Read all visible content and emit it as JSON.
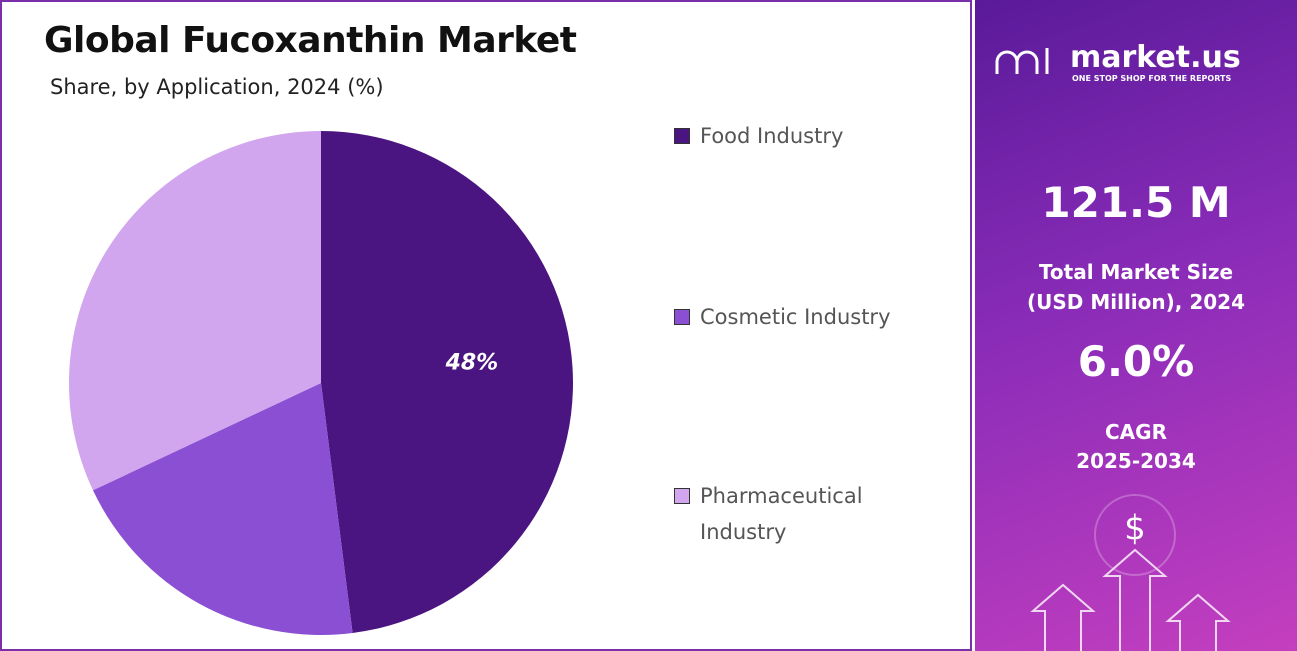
{
  "chart_data": {
    "type": "pie",
    "title": "Global Fucoxanthin Market",
    "subtitle": "Share, by Application, 2024 (%)",
    "categories": [
      "Food Industry",
      "Cosmetic Industry",
      "Pharmaceutical Industry"
    ],
    "values": [
      48,
      20,
      32
    ],
    "value_labels": [
      "48%",
      null,
      null
    ],
    "colors": [
      "#4b1581",
      "#8a4fd2",
      "#d1a6ee"
    ],
    "legend": "right"
  },
  "panel": {
    "brand": "market.us",
    "tagline": "ONE STOP SHOP FOR THE REPORTS",
    "market_size": "121.5 M",
    "market_size_label": [
      "Total Market Size",
      "(USD Million), 2024"
    ],
    "cagr": "6.0%",
    "cagr_label": [
      "CAGR",
      "2025-2034"
    ]
  }
}
